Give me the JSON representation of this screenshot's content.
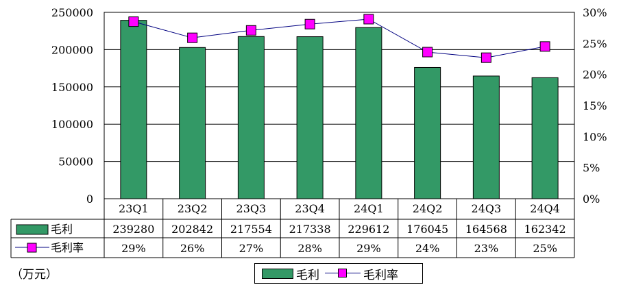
{
  "chart_data": {
    "type": "bar",
    "categories": [
      "23Q1",
      "23Q2",
      "23Q3",
      "23Q4",
      "24Q1",
      "24Q2",
      "24Q3",
      "24Q4"
    ],
    "series": [
      {
        "name": "毛利",
        "type": "bar",
        "axis": "left",
        "color": "#339966",
        "values": [
          239280,
          202842,
          217554,
          217338,
          229612,
          176045,
          164568,
          162342
        ]
      },
      {
        "name": "毛利率",
        "type": "line",
        "axis": "right",
        "line_color": "#000080",
        "marker_color": "#ff00ff",
        "values": [
          0.285,
          0.259,
          0.271,
          0.281,
          0.289,
          0.236,
          0.227,
          0.245
        ],
        "table_labels": [
          "29%",
          "26%",
          "27%",
          "28%",
          "29%",
          "24%",
          "23%",
          "25%"
        ]
      }
    ],
    "left_axis": {
      "min": 0,
      "max": 250000,
      "ticks": [
        "0",
        "50000",
        "100000",
        "150000",
        "200000",
        "250000"
      ]
    },
    "right_axis": {
      "min": 0,
      "max": 0.3,
      "ticks": [
        "0%",
        "5%",
        "10%",
        "15%",
        "20%",
        "25%",
        "30%"
      ]
    },
    "unit_label": "（万元）",
    "grid": "horizontal",
    "legend_position": "bottom-center",
    "data_table": true
  }
}
